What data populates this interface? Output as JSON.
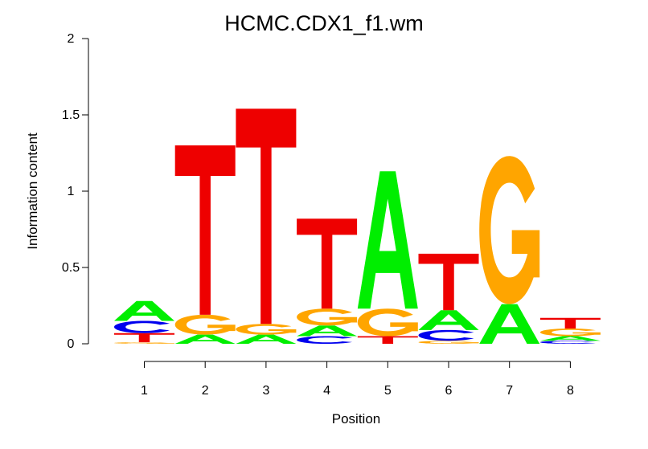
{
  "chart_data": {
    "type": "sequence-logo",
    "title": "HCMC.CDX1_f1.wm",
    "xlabel": "Position",
    "ylabel": "Information content",
    "ylim": [
      0,
      2
    ],
    "yticks": [
      {
        "v": 0,
        "label": "0"
      },
      {
        "v": 0.5,
        "label": "0.5"
      },
      {
        "v": 1,
        "label": "1"
      },
      {
        "v": 1.5,
        "label": "1.5"
      },
      {
        "v": 2,
        "label": "2"
      }
    ],
    "xticks": [
      "1",
      "2",
      "3",
      "4",
      "5",
      "6",
      "7",
      "8"
    ],
    "colors": {
      "A": "#00ee00",
      "C": "#0000ee",
      "G": "#ffa500",
      "T": "#ee0000"
    },
    "positions": [
      {
        "label": "1",
        "stack": [
          {
            "base": "G",
            "h": 0.01
          },
          {
            "base": "T",
            "h": 0.06
          },
          {
            "base": "C",
            "h": 0.08
          },
          {
            "base": "A",
            "h": 0.13
          }
        ]
      },
      {
        "label": "2",
        "stack": [
          {
            "base": "A",
            "h": 0.06
          },
          {
            "base": "G",
            "h": 0.13
          },
          {
            "base": "T",
            "h": 1.11
          }
        ]
      },
      {
        "label": "3",
        "stack": [
          {
            "base": "A",
            "h": 0.06
          },
          {
            "base": "G",
            "h": 0.07
          },
          {
            "base": "T",
            "h": 1.41
          }
        ]
      },
      {
        "label": "4",
        "stack": [
          {
            "base": "C",
            "h": 0.05
          },
          {
            "base": "A",
            "h": 0.07
          },
          {
            "base": "G",
            "h": 0.11
          },
          {
            "base": "T",
            "h": 0.59
          }
        ]
      },
      {
        "label": "5",
        "stack": [
          {
            "base": "T",
            "h": 0.05
          },
          {
            "base": "G",
            "h": 0.18
          },
          {
            "base": "A",
            "h": 0.9
          }
        ]
      },
      {
        "label": "6",
        "stack": [
          {
            "base": "G",
            "h": 0.02
          },
          {
            "base": "C",
            "h": 0.07
          },
          {
            "base": "A",
            "h": 0.13
          },
          {
            "base": "T",
            "h": 0.37
          }
        ]
      },
      {
        "label": "7",
        "stack": [
          {
            "base": "A",
            "h": 0.26
          },
          {
            "base": "G",
            "h": 0.97
          }
        ]
      },
      {
        "label": "8",
        "stack": [
          {
            "base": "C",
            "h": 0.02
          },
          {
            "base": "A",
            "h": 0.03
          },
          {
            "base": "G",
            "h": 0.05
          },
          {
            "base": "T",
            "h": 0.07
          }
        ]
      }
    ]
  }
}
